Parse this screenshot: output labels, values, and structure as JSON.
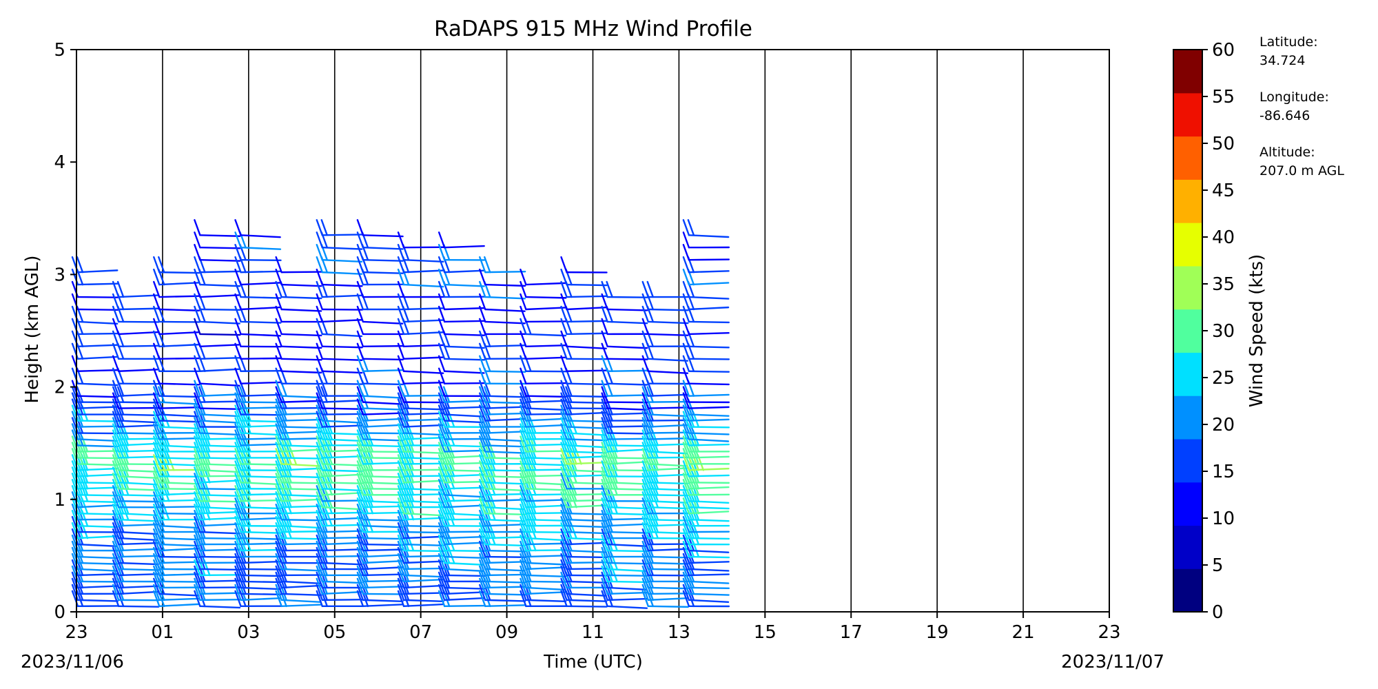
{
  "chart_data": {
    "type": "wind-barb",
    "title": "RaDAPS 915 MHz Wind Profile",
    "xlabel": "Time (UTC)",
    "ylabel": "Height (km AGL)",
    "x_tick_labels": [
      "23",
      "01",
      "03",
      "05",
      "07",
      "09",
      "11",
      "13",
      "15",
      "17",
      "19",
      "21",
      "23"
    ],
    "x_start_date": "2023/11/06",
    "x_end_date": "2023/11/07",
    "y_ticks": [
      0,
      1,
      2,
      3,
      4,
      5
    ],
    "ylim": [
      0,
      5
    ],
    "xlim_hours": [
      0,
      24
    ],
    "vertical_gridlines": true,
    "colorbar": {
      "label": "Wind Speed (kts)",
      "ticks": [
        0,
        5,
        10,
        15,
        20,
        25,
        30,
        35,
        40,
        45,
        50,
        55,
        60
      ],
      "colors": [
        "#000080",
        "#0000c8",
        "#0000ff",
        "#0040ff",
        "#0090ff",
        "#00e0ff",
        "#50ff9e",
        "#a0ff57",
        "#e6ff00",
        "#ffb000",
        "#ff6000",
        "#ef1000",
        "#800000"
      ]
    },
    "profiles_hour_offsets": [
      0.0,
      0.5,
      1.0,
      1.5,
      2.0,
      2.5,
      3.0,
      3.5,
      4.0,
      4.5,
      5.0,
      5.5,
      6.0,
      6.5,
      7.0,
      7.5,
      8.0,
      8.5,
      9.0,
      9.5,
      10.0,
      10.5,
      11.0,
      11.5,
      12.0,
      12.5,
      13.0,
      13.5,
      14.0,
      14.5,
      15.0
    ],
    "profile_top_heights_km": [
      3.1,
      2.85,
      3.1,
      3.4,
      3.35,
      3.1,
      3.4,
      3.45,
      3.3,
      3.3,
      3.1,
      3.0,
      3.05,
      2.9,
      2.9,
      3.35
    ],
    "speed_by_height": [
      {
        "height_km": 0.2,
        "speed_kts": 20
      },
      {
        "height_km": 0.6,
        "speed_kts": 22
      },
      {
        "height_km": 1.0,
        "speed_kts": 28
      },
      {
        "height_km": 1.3,
        "speed_kts": 32
      },
      {
        "height_km": 1.8,
        "speed_kts": 18
      },
      {
        "height_km": 2.4,
        "speed_kts": 14
      },
      {
        "height_km": 3.0,
        "speed_kts": 18
      }
    ]
  },
  "station": {
    "latitude_label": "Latitude:",
    "latitude_value": "34.724",
    "longitude_label": "Longitude:",
    "longitude_value": "-86.646",
    "altitude_label": "Altitude:",
    "altitude_value": "207.0 m AGL"
  }
}
